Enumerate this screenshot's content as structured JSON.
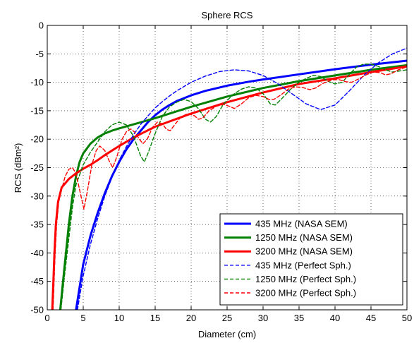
{
  "chart_data": {
    "type": "line",
    "title": "Sphere RCS",
    "xlabel": "Diameter (cm)",
    "ylabel": "RCS (dBm²)",
    "xlim": [
      0,
      50
    ],
    "ylim": [
      -50,
      0
    ],
    "xticks": [
      0,
      5,
      10,
      15,
      20,
      25,
      30,
      35,
      40,
      45,
      50
    ],
    "yticks": [
      0,
      -5,
      -10,
      -15,
      -20,
      -25,
      -30,
      -35,
      -40,
      -45,
      -50
    ],
    "grid": true,
    "legend_position": "bottom-right",
    "series": [
      {
        "name": "435 MHz (NASA SEM)",
        "color": "#0000ff",
        "style": "solid",
        "points": [
          [
            4,
            -50
          ],
          [
            5,
            -42
          ],
          [
            6,
            -37
          ],
          [
            7,
            -33
          ],
          [
            8,
            -29.5
          ],
          [
            9,
            -26.5
          ],
          [
            10,
            -24
          ],
          [
            11,
            -21.8
          ],
          [
            12,
            -20
          ],
          [
            13,
            -18.5
          ],
          [
            14,
            -17
          ],
          [
            15,
            -15.8
          ],
          [
            16,
            -14.8
          ],
          [
            17,
            -14
          ],
          [
            18,
            -13.3
          ],
          [
            20,
            -12.3
          ],
          [
            22,
            -11.5
          ],
          [
            25,
            -10.6
          ],
          [
            28,
            -9.9
          ],
          [
            30,
            -9.5
          ],
          [
            35,
            -8.6
          ],
          [
            40,
            -7.7
          ],
          [
            45,
            -6.9
          ],
          [
            50,
            -6.2
          ]
        ]
      },
      {
        "name": "1250 MHz (NASA SEM)",
        "color": "#008000",
        "style": "solid",
        "points": [
          [
            1.8,
            -50
          ],
          [
            2.2,
            -45
          ],
          [
            2.6,
            -40
          ],
          [
            3,
            -35
          ],
          [
            3.5,
            -30
          ],
          [
            4,
            -26.5
          ],
          [
            4.5,
            -24
          ],
          [
            5,
            -22.5
          ],
          [
            6,
            -20.8
          ],
          [
            7,
            -19.7
          ],
          [
            8,
            -19
          ],
          [
            9,
            -18.5
          ],
          [
            10,
            -18.1
          ],
          [
            12,
            -17.4
          ],
          [
            15,
            -16.3
          ],
          [
            20,
            -14.3
          ],
          [
            25,
            -12.5
          ],
          [
            30,
            -11
          ],
          [
            35,
            -9.8
          ],
          [
            40,
            -8.8
          ],
          [
            45,
            -7.8
          ],
          [
            50,
            -7
          ]
        ]
      },
      {
        "name": "3200 MHz (NASA SEM)",
        "color": "#ff0000",
        "style": "solid",
        "points": [
          [
            0.7,
            -50
          ],
          [
            0.85,
            -45
          ],
          [
            1,
            -40
          ],
          [
            1.2,
            -35
          ],
          [
            1.5,
            -31
          ],
          [
            2,
            -28.5
          ],
          [
            3,
            -27
          ],
          [
            4,
            -26
          ],
          [
            5,
            -25.2
          ],
          [
            6,
            -24.5
          ],
          [
            7,
            -23.7
          ],
          [
            8,
            -22.8
          ],
          [
            9,
            -22
          ],
          [
            10,
            -21.2
          ],
          [
            12,
            -19.7
          ],
          [
            15,
            -17.8
          ],
          [
            20,
            -15.5
          ],
          [
            25,
            -13.5
          ],
          [
            30,
            -11.8
          ],
          [
            35,
            -10.3
          ],
          [
            40,
            -9.3
          ],
          [
            45,
            -8.2
          ],
          [
            50,
            -7.2
          ]
        ]
      },
      {
        "name": "435 MHz (Perfect Sph.)",
        "color": "#0000ff",
        "style": "dashed",
        "points": [
          [
            4.2,
            -50
          ],
          [
            5,
            -44
          ],
          [
            6,
            -38.5
          ],
          [
            7,
            -34
          ],
          [
            8,
            -30
          ],
          [
            9,
            -26.7
          ],
          [
            10,
            -23.7
          ],
          [
            11,
            -21.3
          ],
          [
            12,
            -19.2
          ],
          [
            13,
            -17.4
          ],
          [
            14,
            -15.9
          ],
          [
            15,
            -14.5
          ],
          [
            16,
            -13.4
          ],
          [
            17,
            -12.4
          ],
          [
            18,
            -11.5
          ],
          [
            20,
            -10
          ],
          [
            22,
            -8.9
          ],
          [
            24,
            -8.1
          ],
          [
            26,
            -7.8
          ],
          [
            28,
            -8
          ],
          [
            30,
            -8.8
          ],
          [
            32,
            -10.2
          ],
          [
            34,
            -12
          ],
          [
            36,
            -13.8
          ],
          [
            38,
            -14.8
          ],
          [
            40,
            -14
          ],
          [
            42,
            -11.5
          ],
          [
            44,
            -8.8
          ],
          [
            46,
            -6.6
          ],
          [
            48,
            -5
          ],
          [
            50,
            -4
          ]
        ]
      },
      {
        "name": "1250 MHz (Perfect Sph.)",
        "color": "#008000",
        "style": "dashed",
        "points": [
          [
            1.9,
            -50
          ],
          [
            2.4,
            -44
          ],
          [
            3,
            -37.5
          ],
          [
            3.5,
            -32
          ],
          [
            4,
            -28
          ],
          [
            5,
            -24.5
          ],
          [
            6,
            -22.3
          ],
          [
            7,
            -20.5
          ],
          [
            8,
            -18.7
          ],
          [
            9,
            -17.5
          ],
          [
            10,
            -17
          ],
          [
            11,
            -17.5
          ],
          [
            12,
            -19.5
          ],
          [
            13,
            -23
          ],
          [
            13.5,
            -24
          ],
          [
            14,
            -22.5
          ],
          [
            15,
            -19
          ],
          [
            16,
            -16
          ],
          [
            17,
            -14.3
          ],
          [
            18,
            -13.5
          ],
          [
            19,
            -13
          ],
          [
            20,
            -13.4
          ],
          [
            21,
            -14.6
          ],
          [
            22,
            -16.5
          ],
          [
            22.7,
            -17
          ],
          [
            23.5,
            -16
          ],
          [
            24.5,
            -13.8
          ],
          [
            26,
            -12
          ],
          [
            27,
            -11.2
          ],
          [
            28,
            -10.8
          ],
          [
            29,
            -11
          ],
          [
            30,
            -12
          ],
          [
            31,
            -13.8
          ],
          [
            31.7,
            -14
          ],
          [
            32.5,
            -13
          ],
          [
            34,
            -11
          ],
          [
            35,
            -10
          ],
          [
            36,
            -9.3
          ],
          [
            37,
            -8.8
          ],
          [
            38,
            -9
          ],
          [
            39,
            -9.8
          ],
          [
            40,
            -10.3
          ],
          [
            41,
            -10
          ],
          [
            42,
            -8.6
          ],
          [
            43,
            -7.3
          ],
          [
            44,
            -6.8
          ],
          [
            45,
            -6.8
          ],
          [
            46,
            -7.2
          ],
          [
            47,
            -7.8
          ],
          [
            48,
            -8.2
          ],
          [
            49,
            -8
          ],
          [
            50,
            -7.8
          ]
        ]
      },
      {
        "name": "3200 MHz (Perfect Sph.)",
        "color": "#ff0000",
        "style": "dashed",
        "points": [
          [
            0.8,
            -50
          ],
          [
            0.95,
            -45
          ],
          [
            1.1,
            -40
          ],
          [
            1.3,
            -35
          ],
          [
            1.6,
            -31
          ],
          [
            2,
            -28.8
          ],
          [
            2.5,
            -26.5
          ],
          [
            3,
            -25.3
          ],
          [
            3.5,
            -25
          ],
          [
            4,
            -26
          ],
          [
            4.6,
            -29.5
          ],
          [
            5.1,
            -32.3
          ],
          [
            5.6,
            -29
          ],
          [
            6.2,
            -24.5
          ],
          [
            6.8,
            -22
          ],
          [
            7.3,
            -21.2
          ],
          [
            8,
            -22
          ],
          [
            8.6,
            -23.8
          ],
          [
            9.1,
            -25
          ],
          [
            9.7,
            -23
          ],
          [
            10.4,
            -20
          ],
          [
            11,
            -18.7
          ],
          [
            11.6,
            -18.2
          ],
          [
            12.2,
            -18.8
          ],
          [
            12.8,
            -20
          ],
          [
            13.3,
            -20.8
          ],
          [
            13.9,
            -20
          ],
          [
            14.6,
            -18
          ],
          [
            15.3,
            -17
          ],
          [
            16,
            -17.3
          ],
          [
            16.6,
            -18.3
          ],
          [
            17.1,
            -18.5
          ],
          [
            17.7,
            -17.5
          ],
          [
            18.5,
            -16.2
          ],
          [
            19.5,
            -15.5
          ],
          [
            20.5,
            -15.9
          ],
          [
            21,
            -16.5
          ],
          [
            21.6,
            -16.3
          ],
          [
            22.5,
            -15
          ],
          [
            23.5,
            -14.2
          ],
          [
            24.5,
            -13.9
          ],
          [
            25.3,
            -14.2
          ],
          [
            26,
            -14.6
          ],
          [
            27,
            -13.8
          ],
          [
            28,
            -12.7
          ],
          [
            29,
            -12.3
          ],
          [
            30,
            -12.5
          ],
          [
            30.8,
            -13
          ],
          [
            31.5,
            -13
          ],
          [
            32.5,
            -12.2
          ],
          [
            33.5,
            -11.2
          ],
          [
            34.5,
            -10.8
          ],
          [
            35.5,
            -10.9
          ],
          [
            36.5,
            -11.3
          ],
          [
            37.3,
            -11
          ],
          [
            38.3,
            -10.2
          ],
          [
            39.5,
            -9.6
          ],
          [
            40.5,
            -9.5
          ],
          [
            41.5,
            -9.9
          ],
          [
            42.3,
            -10
          ],
          [
            43.3,
            -9.4
          ],
          [
            44.3,
            -8.7
          ],
          [
            45.3,
            -8.2
          ],
          [
            46.3,
            -8.3
          ],
          [
            47,
            -8.7
          ],
          [
            47.8,
            -8.5
          ],
          [
            48.8,
            -7.8
          ],
          [
            50,
            -7.3
          ]
        ]
      }
    ]
  }
}
